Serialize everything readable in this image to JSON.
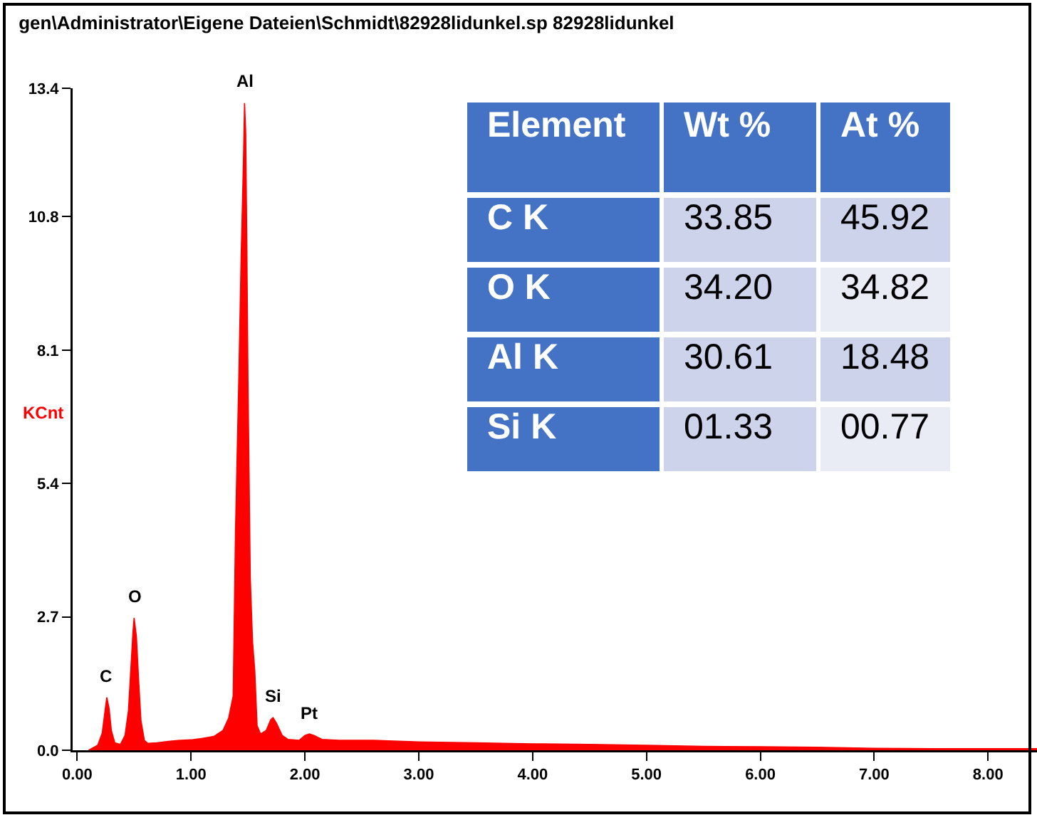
{
  "chart_data": [
    {
      "type": "area",
      "title": "gen\\Administrator\\Eigene Dateien\\Schmidt\\82928lidunkel.sp 82928lidunkel",
      "ylabel": "KCnt",
      "x": [
        0.1,
        0.14,
        0.18,
        0.22,
        0.25,
        0.26,
        0.28,
        0.3,
        0.33,
        0.38,
        0.42,
        0.45,
        0.47,
        0.49,
        0.5,
        0.52,
        0.54,
        0.56,
        0.59,
        0.62,
        0.7,
        0.8,
        0.9,
        1.0,
        1.1,
        1.2,
        1.28,
        1.33,
        1.37,
        1.39,
        1.42,
        1.44,
        1.46,
        1.47,
        1.48,
        1.49,
        1.5,
        1.52,
        1.54,
        1.56,
        1.58,
        1.61,
        1.66,
        1.7,
        1.72,
        1.75,
        1.8,
        1.85,
        1.95,
        2.0,
        2.04,
        2.08,
        2.15,
        2.3,
        2.6,
        3.0,
        3.5,
        4.0,
        4.5,
        5.0,
        5.5,
        6.0,
        6.5,
        7.0,
        7.5,
        8.0,
        8.43
      ],
      "values": [
        0,
        0.05,
        0.1,
        0.35,
        0.9,
        1.07,
        0.85,
        0.4,
        0.15,
        0.12,
        0.3,
        0.8,
        1.6,
        2.4,
        2.68,
        2.3,
        1.4,
        0.6,
        0.2,
        0.14,
        0.15,
        0.18,
        0.2,
        0.21,
        0.24,
        0.28,
        0.4,
        0.65,
        1.1,
        4.4,
        7.6,
        10.0,
        11.9,
        13.1,
        12.5,
        10.2,
        7.5,
        3.5,
        2.2,
        1.6,
        0.5,
        0.33,
        0.4,
        0.62,
        0.66,
        0.55,
        0.3,
        0.22,
        0.2,
        0.3,
        0.33,
        0.3,
        0.22,
        0.2,
        0.2,
        0.17,
        0.15,
        0.13,
        0.12,
        0.1,
        0.08,
        0.07,
        0.06,
        0.04,
        0.03,
        0.03,
        0.03
      ],
      "color": "#ff0000",
      "marker": "none",
      "xlim": [
        -0.04,
        8.43
      ],
      "xticks": [
        {
          "value": 0,
          "label": "0.00"
        },
        {
          "value": 1,
          "label": "1.00"
        },
        {
          "value": 2,
          "label": "2.00"
        },
        {
          "value": 3,
          "label": "3.00"
        },
        {
          "value": 4,
          "label": "4.00"
        },
        {
          "value": 5,
          "label": "5.00"
        },
        {
          "value": 6,
          "label": "6.00"
        },
        {
          "value": 7,
          "label": "7.00"
        },
        {
          "value": 8,
          "label": "8.00"
        }
      ],
      "ylim": [
        0,
        13.4
      ],
      "yticks": [
        {
          "value": 0,
          "label": "0.0"
        },
        2.7,
        5.4,
        8.1,
        10.8,
        13.4
      ],
      "annotations": [
        {
          "text": "C",
          "x": 0.26,
          "y": 1.07
        },
        {
          "text": "O",
          "x": 0.5,
          "y": 2.68
        },
        {
          "text": "Al",
          "x": 1.47,
          "y": 13.1
        },
        {
          "text": "Si",
          "x": 1.72,
          "y": 0.66
        },
        {
          "text": "Pt",
          "x": 2.04,
          "y": 0.33
        }
      ]
    },
    {
      "type": "other",
      "categories": [
        "Element",
        "Wt %",
        "At %"
      ],
      "y_categories": [
        "C K",
        "O K",
        "Al K",
        "Si K"
      ],
      "cells": [
        [
          "33.85",
          "45.92"
        ],
        [
          "34.20",
          "34.82"
        ],
        [
          "30.61",
          "18.48"
        ],
        [
          "01.33",
          "00.77"
        ]
      ]
    }
  ]
}
